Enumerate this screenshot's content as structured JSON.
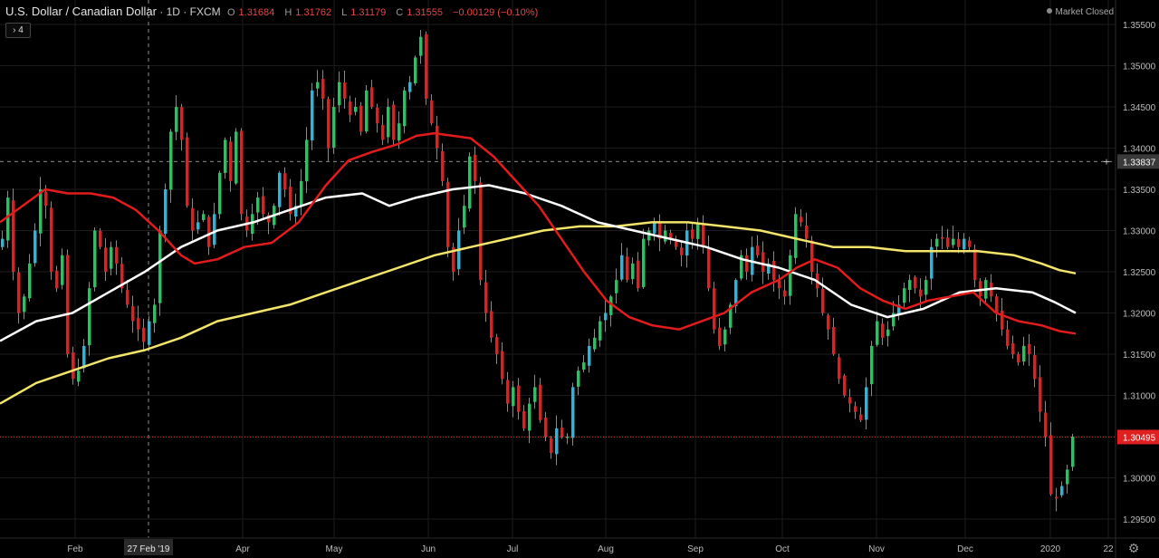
{
  "header": {
    "symbol": "U.S. Dollar / Canadian Dollar",
    "interval": "1D",
    "exchange": "FXCM",
    "open_label": "O",
    "open": "1.31684",
    "high_label": "H",
    "high": "1.31762",
    "low_label": "L",
    "low": "1.31179",
    "close_label": "C",
    "close": "1.31555",
    "change": "−0.00129 (−0.10%)",
    "collapse_label": "4",
    "market_status": "Market Closed"
  },
  "colors": {
    "up": "#22c55e",
    "up_alt": "#2bb5d8",
    "down": "#e02020",
    "ma_red": "#e31b1b",
    "ma_white": "#ffffff",
    "ma_yellow": "#f3e46a",
    "last_price": "#e02020"
  },
  "chart_data": {
    "type": "line",
    "title": "U.S. Dollar / Canadian Dollar",
    "x_tick_labels": [
      "Feb",
      "27 Feb '19",
      "Apr",
      "May",
      "Jun",
      "Jul",
      "Aug",
      "Sep",
      "Oct",
      "Nov",
      "Dec",
      "2020",
      "22"
    ],
    "y_tick_labels": [
      "1.35500",
      "1.35000",
      "1.34500",
      "1.34000",
      "1.33500",
      "1.33000",
      "1.32500",
      "1.32000",
      "1.31500",
      "1.31000",
      "1.30500",
      "1.30000",
      "1.29500"
    ],
    "ylim": [
      1.2935,
      1.3575
    ],
    "crosshair_price": "1.33837",
    "last_price": "1.30495",
    "close_path": [
      [
        1,
        1.329
      ],
      [
        7,
        1.334
      ],
      [
        13,
        1.325
      ],
      [
        19,
        1.32
      ],
      [
        25,
        1.322
      ],
      [
        31,
        1.326
      ],
      [
        37,
        1.33
      ],
      [
        43,
        1.335
      ],
      [
        49,
        1.333
      ],
      [
        55,
        1.325
      ],
      [
        61,
        1.323
      ],
      [
        67,
        1.327
      ],
      [
        73,
        1.315
      ],
      [
        79,
        1.312
      ],
      [
        85,
        1.313
      ],
      [
        91,
        1.316
      ],
      [
        97,
        1.323
      ],
      [
        103,
        1.33
      ],
      [
        109,
        1.328
      ],
      [
        115,
        1.325
      ],
      [
        121,
        1.328
      ],
      [
        127,
        1.326
      ],
      [
        133,
        1.323
      ],
      [
        139,
        1.321
      ],
      [
        145,
        1.319
      ],
      [
        151,
        1.318
      ],
      [
        157,
        1.3165
      ],
      [
        163,
        1.319
      ],
      [
        169,
        1.321
      ],
      [
        175,
        1.33
      ],
      [
        181,
        1.335
      ],
      [
        187,
        1.342
      ],
      [
        193,
        1.345
      ],
      [
        199,
        1.341
      ],
      [
        205,
        1.333
      ],
      [
        211,
        1.33
      ],
      [
        217,
        1.331
      ],
      [
        223,
        1.332
      ],
      [
        229,
        1.328
      ],
      [
        235,
        1.332
      ],
      [
        241,
        1.337
      ],
      [
        247,
        1.341
      ],
      [
        253,
        1.336
      ],
      [
        259,
        1.342
      ],
      [
        265,
        1.332
      ],
      [
        271,
        1.33
      ],
      [
        277,
        1.332
      ],
      [
        283,
        1.334
      ],
      [
        289,
        1.332
      ],
      [
        295,
        1.331
      ],
      [
        301,
        1.333
      ],
      [
        307,
        1.337
      ],
      [
        313,
        1.335
      ],
      [
        319,
        1.332
      ],
      [
        325,
        1.333
      ],
      [
        331,
        1.336
      ],
      [
        337,
        1.341
      ],
      [
        343,
        1.347
      ],
      [
        349,
        1.348
      ],
      [
        355,
        1.346
      ],
      [
        361,
        1.34
      ],
      [
        367,
        1.345
      ],
      [
        373,
        1.348
      ],
      [
        379,
        1.346
      ],
      [
        385,
        1.344
      ],
      [
        391,
        1.345
      ],
      [
        397,
        1.342
      ],
      [
        403,
        1.347
      ],
      [
        409,
        1.345
      ],
      [
        415,
        1.343
      ],
      [
        421,
        1.341
      ],
      [
        427,
        1.345
      ],
      [
        433,
        1.341
      ],
      [
        439,
        1.343
      ],
      [
        445,
        1.347
      ],
      [
        451,
        1.348
      ],
      [
        457,
        1.351
      ],
      [
        463,
        1.3535
      ],
      [
        469,
        1.346
      ],
      [
        475,
        1.343
      ],
      [
        481,
        1.34
      ],
      [
        487,
        1.336
      ],
      [
        493,
        1.328
      ],
      [
        499,
        1.325
      ],
      [
        505,
        1.33
      ],
      [
        511,
        1.333
      ],
      [
        517,
        1.339
      ],
      [
        523,
        1.336
      ],
      [
        529,
        1.324
      ],
      [
        535,
        1.32
      ],
      [
        541,
        1.317
      ],
      [
        547,
        1.315
      ],
      [
        553,
        1.312
      ],
      [
        559,
        1.309
      ],
      [
        565,
        1.311
      ],
      [
        571,
        1.308
      ],
      [
        577,
        1.306
      ],
      [
        583,
        1.309
      ],
      [
        589,
        1.311
      ],
      [
        595,
        1.307
      ],
      [
        601,
        1.305
      ],
      [
        607,
        1.303
      ],
      [
        613,
        1.306
      ],
      [
        619,
        1.305
      ],
      [
        625,
        1.305
      ],
      [
        631,
        1.311
      ],
      [
        637,
        1.313
      ],
      [
        643,
        1.314
      ],
      [
        649,
        1.316
      ],
      [
        655,
        1.317
      ],
      [
        661,
        1.319
      ],
      [
        667,
        1.32
      ],
      [
        673,
        1.322
      ],
      [
        679,
        1.324
      ],
      [
        685,
        1.327
      ],
      [
        691,
        1.324
      ],
      [
        697,
        1.326
      ],
      [
        703,
        1.323
      ],
      [
        709,
        1.329
      ],
      [
        715,
        1.33
      ],
      [
        721,
        1.331
      ],
      [
        727,
        1.329
      ],
      [
        733,
        1.33
      ],
      [
        739,
        1.329
      ],
      [
        745,
        1.328
      ],
      [
        751,
        1.327
      ],
      [
        757,
        1.33
      ],
      [
        763,
        1.329
      ],
      [
        769,
        1.331
      ],
      [
        775,
        1.328
      ],
      [
        781,
        1.323
      ],
      [
        787,
        1.318
      ],
      [
        793,
        1.316
      ],
      [
        799,
        1.318
      ],
      [
        805,
        1.321
      ],
      [
        811,
        1.324
      ],
      [
        817,
        1.327
      ],
      [
        823,
        1.325
      ],
      [
        829,
        1.328
      ],
      [
        835,
        1.327
      ],
      [
        841,
        1.325
      ],
      [
        847,
        1.326
      ],
      [
        853,
        1.324
      ],
      [
        859,
        1.323
      ],
      [
        865,
        1.322
      ],
      [
        871,
        1.327
      ],
      [
        877,
        1.332
      ],
      [
        883,
        1.331
      ],
      [
        889,
        1.329
      ],
      [
        895,
        1.325
      ],
      [
        901,
        1.323
      ],
      [
        907,
        1.32
      ],
      [
        913,
        1.318
      ],
      [
        919,
        1.315
      ],
      [
        925,
        1.312
      ],
      [
        931,
        1.31
      ],
      [
        937,
        1.309
      ],
      [
        943,
        1.308
      ],
      [
        949,
        1.307
      ],
      [
        955,
        1.311
      ],
      [
        961,
        1.316
      ],
      [
        967,
        1.319
      ],
      [
        973,
        1.317
      ],
      [
        979,
        1.318
      ],
      [
        985,
        1.32
      ],
      [
        991,
        1.321
      ],
      [
        997,
        1.323
      ],
      [
        1003,
        1.324
      ],
      [
        1009,
        1.323
      ],
      [
        1015,
        1.322
      ],
      [
        1021,
        1.324
      ],
      [
        1027,
        1.328
      ],
      [
        1033,
        1.329
      ],
      [
        1039,
        1.329
      ],
      [
        1045,
        1.328
      ],
      [
        1051,
        1.329
      ],
      [
        1057,
        1.328
      ],
      [
        1063,
        1.329
      ],
      [
        1069,
        1.328
      ],
      [
        1075,
        1.324
      ],
      [
        1081,
        1.322
      ],
      [
        1087,
        1.324
      ],
      [
        1093,
        1.322
      ],
      [
        1099,
        1.32
      ],
      [
        1105,
        1.318
      ],
      [
        1111,
        1.316
      ],
      [
        1117,
        1.315
      ],
      [
        1123,
        1.314
      ],
      [
        1129,
        1.316
      ],
      [
        1135,
        1.315
      ],
      [
        1141,
        1.312
      ],
      [
        1147,
        1.308
      ],
      [
        1153,
        1.305
      ],
      [
        1159,
        1.298
      ],
      [
        1165,
        1.2975
      ],
      [
        1171,
        1.299
      ],
      [
        1177,
        1.301
      ],
      [
        1183,
        1.305
      ]
    ],
    "ma_red": [
      [
        0,
        1.331
      ],
      [
        25,
        1.333
      ],
      [
        50,
        1.335
      ],
      [
        75,
        1.3345
      ],
      [
        100,
        1.3345
      ],
      [
        125,
        1.334
      ],
      [
        150,
        1.3325
      ],
      [
        175,
        1.33
      ],
      [
        200,
        1.327
      ],
      [
        215,
        1.326
      ],
      [
        240,
        1.3265
      ],
      [
        270,
        1.328
      ],
      [
        300,
        1.3285
      ],
      [
        330,
        1.331
      ],
      [
        360,
        1.3355
      ],
      [
        385,
        1.3385
      ],
      [
        410,
        1.3395
      ],
      [
        440,
        1.3405
      ],
      [
        460,
        1.3415
      ],
      [
        480,
        1.3418
      ],
      [
        500,
        1.3415
      ],
      [
        520,
        1.3412
      ],
      [
        545,
        1.339
      ],
      [
        570,
        1.336
      ],
      [
        595,
        1.333
      ],
      [
        620,
        1.329
      ],
      [
        645,
        1.325
      ],
      [
        670,
        1.3215
      ],
      [
        695,
        1.3195
      ],
      [
        720,
        1.3185
      ],
      [
        750,
        1.318
      ],
      [
        775,
        1.319
      ],
      [
        800,
        1.32
      ],
      [
        830,
        1.3225
      ],
      [
        860,
        1.324
      ],
      [
        880,
        1.3255
      ],
      [
        900,
        1.3265
      ],
      [
        925,
        1.3255
      ],
      [
        950,
        1.323
      ],
      [
        975,
        1.3215
      ],
      [
        1000,
        1.3205
      ],
      [
        1025,
        1.3215
      ],
      [
        1050,
        1.322
      ],
      [
        1075,
        1.3225
      ],
      [
        1100,
        1.32
      ],
      [
        1125,
        1.319
      ],
      [
        1150,
        1.3185
      ],
      [
        1170,
        1.3178
      ],
      [
        1188,
        1.3175
      ]
    ],
    "ma_white": [
      [
        0,
        1.3166
      ],
      [
        40,
        1.319
      ],
      [
        80,
        1.32
      ],
      [
        120,
        1.3225
      ],
      [
        160,
        1.325
      ],
      [
        200,
        1.328
      ],
      [
        240,
        1.33
      ],
      [
        280,
        1.331
      ],
      [
        320,
        1.3325
      ],
      [
        360,
        1.334
      ],
      [
        400,
        1.3345
      ],
      [
        430,
        1.333
      ],
      [
        460,
        1.334
      ],
      [
        500,
        1.335
      ],
      [
        540,
        1.3355
      ],
      [
        580,
        1.3345
      ],
      [
        620,
        1.333
      ],
      [
        660,
        1.331
      ],
      [
        700,
        1.33
      ],
      [
        740,
        1.329
      ],
      [
        780,
        1.328
      ],
      [
        820,
        1.3265
      ],
      [
        860,
        1.3255
      ],
      [
        900,
        1.324
      ],
      [
        940,
        1.321
      ],
      [
        980,
        1.3195
      ],
      [
        1020,
        1.3205
      ],
      [
        1060,
        1.3225
      ],
      [
        1100,
        1.323
      ],
      [
        1140,
        1.3225
      ],
      [
        1165,
        1.3213
      ],
      [
        1188,
        1.32
      ]
    ],
    "ma_yellow": [
      [
        0,
        1.309
      ],
      [
        40,
        1.3115
      ],
      [
        80,
        1.313
      ],
      [
        120,
        1.3145
      ],
      [
        160,
        1.3155
      ],
      [
        200,
        1.317
      ],
      [
        240,
        1.319
      ],
      [
        280,
        1.32
      ],
      [
        320,
        1.321
      ],
      [
        360,
        1.3225
      ],
      [
        400,
        1.324
      ],
      [
        440,
        1.3255
      ],
      [
        480,
        1.327
      ],
      [
        520,
        1.328
      ],
      [
        560,
        1.329
      ],
      [
        600,
        1.33
      ],
      [
        640,
        1.3305
      ],
      [
        680,
        1.3305
      ],
      [
        720,
        1.331
      ],
      [
        760,
        1.331
      ],
      [
        800,
        1.3305
      ],
      [
        840,
        1.33
      ],
      [
        880,
        1.329
      ],
      [
        920,
        1.328
      ],
      [
        960,
        1.328
      ],
      [
        1000,
        1.3275
      ],
      [
        1040,
        1.3275
      ],
      [
        1080,
        1.3275
      ],
      [
        1120,
        1.327
      ],
      [
        1150,
        1.326
      ],
      [
        1170,
        1.3252
      ],
      [
        1188,
        1.3248
      ]
    ]
  }
}
